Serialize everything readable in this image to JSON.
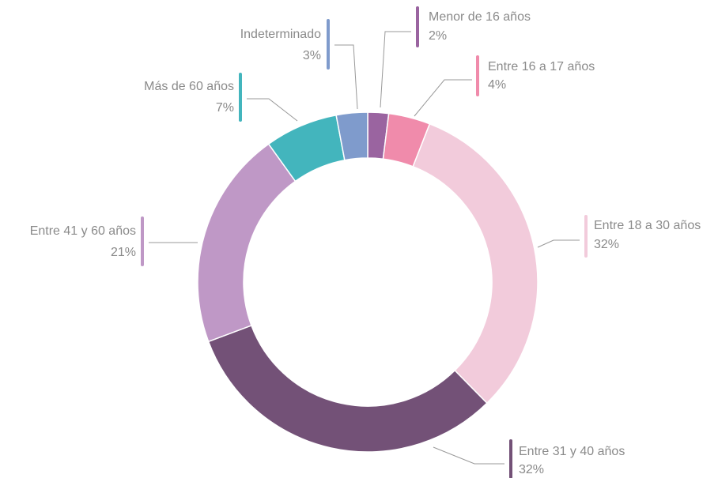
{
  "chart_data": {
    "type": "donut",
    "categories": [
      "Menor de 16 años",
      "Entre 16 a 17 años",
      "Entre 18 a 30 años",
      "Entre 31 y 40 años",
      "Entre 41 y  60 años",
      "Más de 60 años",
      "Indeterminado"
    ],
    "values": [
      2,
      4,
      32,
      32,
      21,
      7,
      3
    ],
    "value_labels": [
      "2%",
      "4%",
      "32%",
      "32%",
      "21%",
      "7%",
      "3%"
    ],
    "colors": [
      "#9a64a0",
      "#f08bab",
      "#f2cbdb",
      "#735177",
      "#bf98c6",
      "#43b5bd",
      "#7f9bcc"
    ]
  }
}
